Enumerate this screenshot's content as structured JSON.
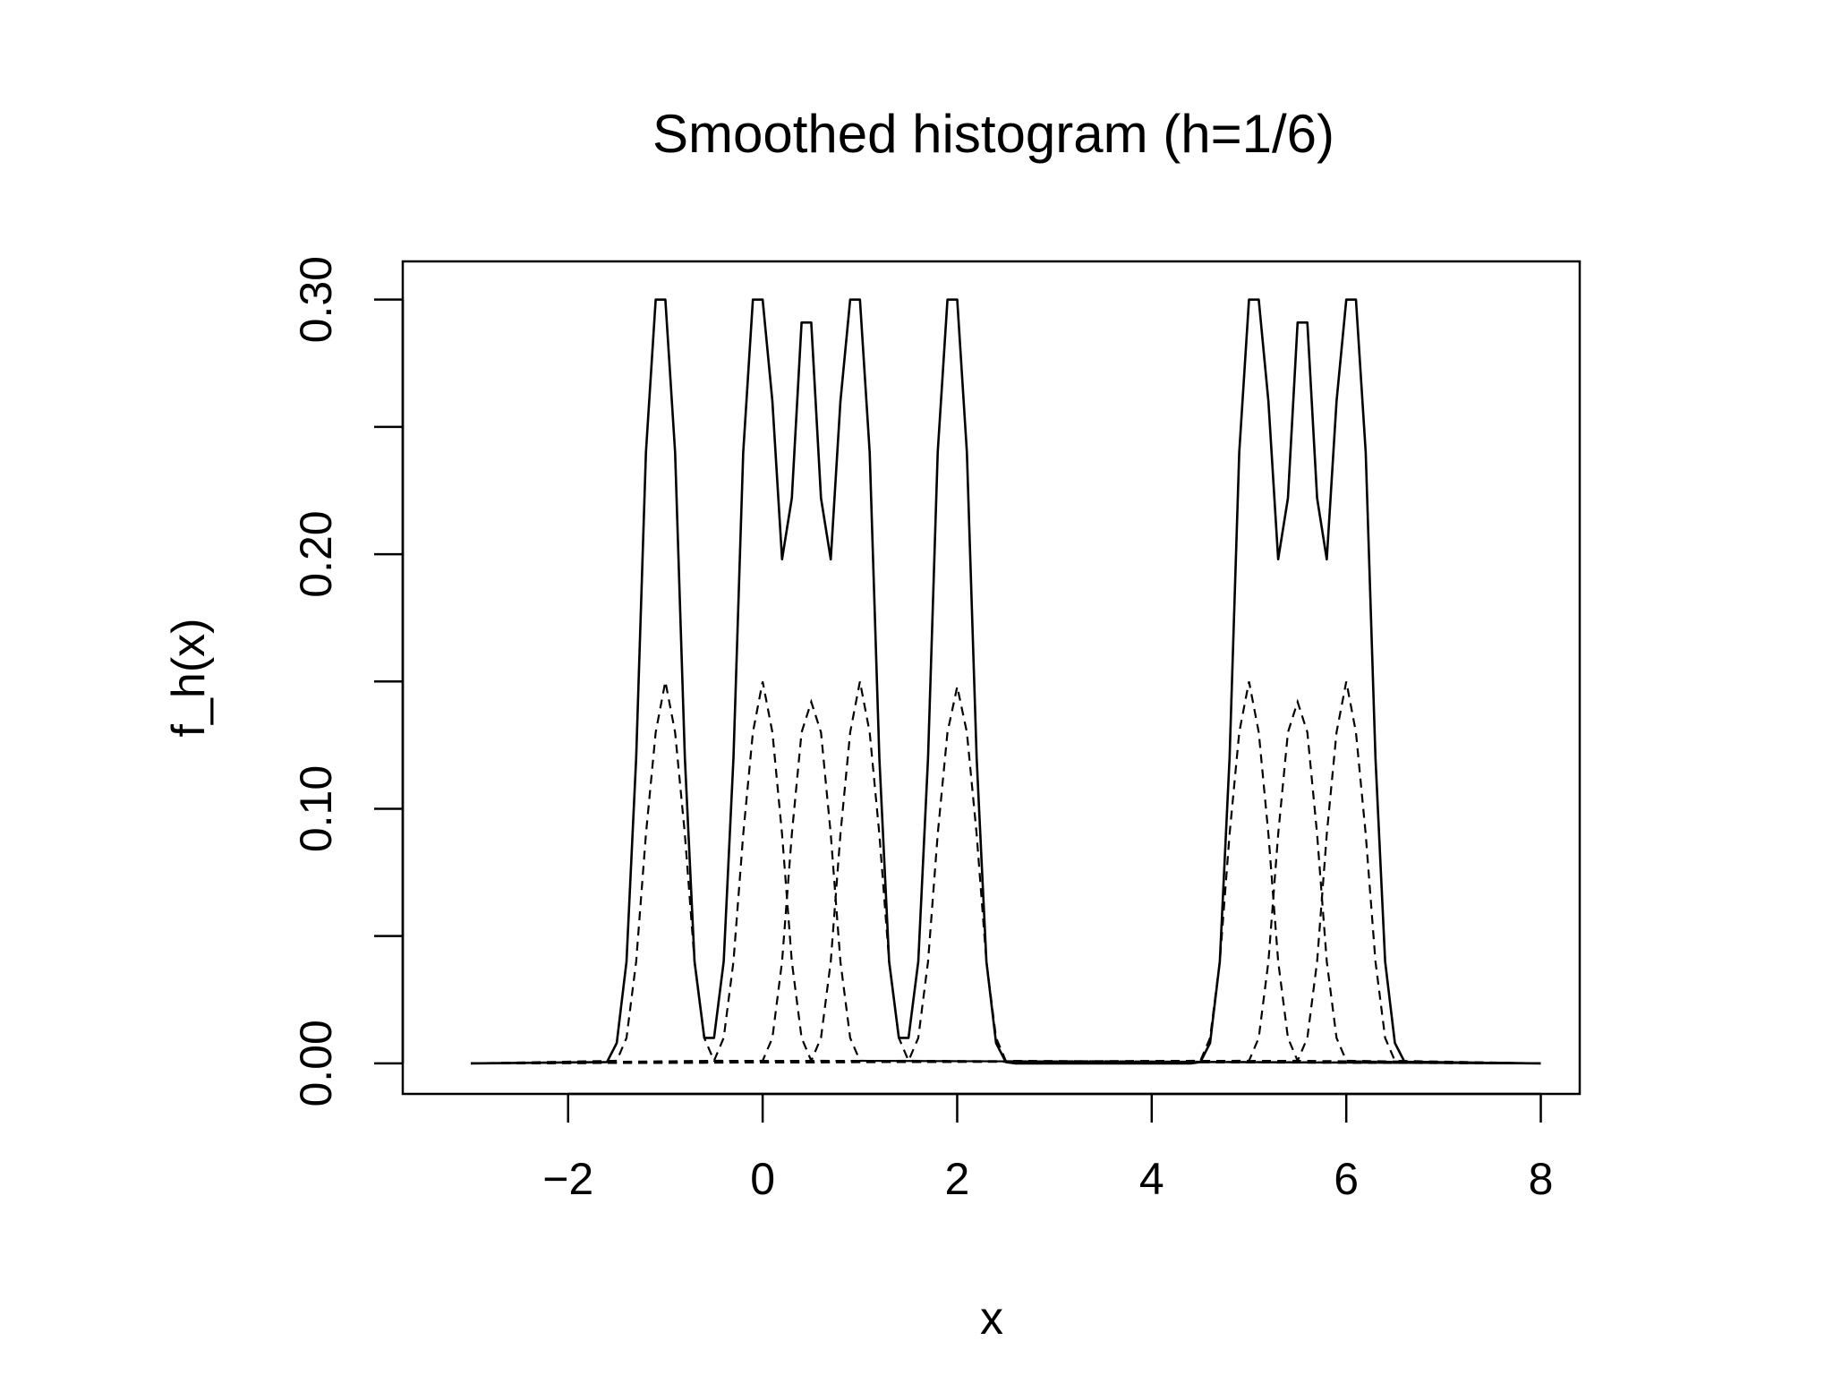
{
  "chart_data": {
    "type": "line",
    "title": "Smoothed histogram (h=1/6)",
    "xlabel": "x",
    "ylabel": "f_h(x)",
    "xlim": [
      -3.7,
      8.4
    ],
    "ylim": [
      -0.012,
      0.315
    ],
    "x_ticks": [
      -2,
      0,
      2,
      4,
      6,
      8
    ],
    "x_tick_labels": [
      "−2",
      "0",
      "2",
      "4",
      "6",
      "8"
    ],
    "y_ticks": [
      0.0,
      0.05,
      0.1,
      0.15,
      0.2,
      0.25,
      0.3
    ],
    "y_tick_labels": [
      "0.00",
      "",
      "0.10",
      "",
      "0.20",
      "",
      "0.30"
    ],
    "grid": false,
    "legend": "none",
    "bandwidth": 0.1667,
    "sample_points": [
      -1,
      0,
      0.5,
      1,
      2,
      5,
      5.5,
      6
    ],
    "x_range_plotted": [
      -3,
      8
    ],
    "series": [
      {
        "style": "solid",
        "x": [
          -3,
          -1.6,
          -1.5,
          -1.4,
          -1.3,
          -1.2,
          -1.1,
          -1.0,
          -0.9,
          -0.8,
          -0.7,
          -0.6,
          -0.5,
          -0.4,
          -0.3,
          -0.2,
          -0.1,
          0.0,
          0.1,
          0.2,
          0.3,
          0.4,
          0.5,
          0.6,
          0.7,
          0.8,
          0.9,
          1.0,
          1.1,
          1.2,
          1.3,
          1.4,
          1.5,
          1.6,
          1.7,
          1.8,
          1.9,
          2.0,
          2.1,
          2.2,
          2.3,
          2.4,
          2.5,
          2.6,
          4.4,
          4.5,
          4.6,
          4.7,
          4.8,
          4.9,
          5.0,
          5.1,
          5.2,
          5.3,
          5.4,
          5.5,
          5.6,
          5.7,
          5.8,
          5.9,
          6.0,
          6.1,
          6.2,
          6.3,
          6.4,
          6.5,
          6.6,
          8
        ],
        "values": [
          0,
          0.0005,
          0.008,
          0.04,
          0.12,
          0.24,
          0.3,
          0.3,
          0.24,
          0.12,
          0.04,
          0.01,
          0.01,
          0.04,
          0.12,
          0.24,
          0.3,
          0.3,
          0.26,
          0.198,
          0.222,
          0.291,
          0.291,
          0.222,
          0.198,
          0.26,
          0.3,
          0.3,
          0.24,
          0.12,
          0.04,
          0.01,
          0.01,
          0.04,
          0.12,
          0.24,
          0.3,
          0.3,
          0.24,
          0.12,
          0.04,
          0.008,
          0.0005,
          0,
          0,
          0.0005,
          0.008,
          0.04,
          0.12,
          0.24,
          0.3,
          0.3,
          0.26,
          0.198,
          0.222,
          0.291,
          0.291,
          0.222,
          0.198,
          0.26,
          0.3,
          0.3,
          0.24,
          0.12,
          0.04,
          0.008,
          0.0005,
          0
        ]
      },
      {
        "style": "dashed",
        "x": [
          -3,
          -1.5,
          -1.4,
          -1.3,
          -1.2,
          -1.1,
          -1.0,
          -0.9,
          -0.8,
          -0.7,
          -0.6,
          -0.5,
          8
        ],
        "values": [
          0,
          0.001,
          0.01,
          0.04,
          0.09,
          0.13,
          0.15,
          0.13,
          0.09,
          0.04,
          0.01,
          0.001,
          0
        ]
      },
      {
        "style": "dashed",
        "x": [
          -3,
          -0.5,
          -0.4,
          -0.3,
          -0.2,
          -0.1,
          0.0,
          0.1,
          0.2,
          0.3,
          0.4,
          0.5,
          8
        ],
        "values": [
          0,
          0.001,
          0.01,
          0.04,
          0.09,
          0.13,
          0.15,
          0.13,
          0.09,
          0.04,
          0.01,
          0.001,
          0
        ]
      },
      {
        "style": "dashed",
        "x": [
          -3,
          0.0,
          0.1,
          0.2,
          0.3,
          0.4,
          0.5,
          0.6,
          0.7,
          0.8,
          0.9,
          1.0,
          8
        ],
        "values": [
          0,
          0.001,
          0.01,
          0.04,
          0.09,
          0.13,
          0.142,
          0.13,
          0.09,
          0.04,
          0.01,
          0.001,
          0
        ]
      },
      {
        "style": "dashed",
        "x": [
          -3,
          0.5,
          0.6,
          0.7,
          0.8,
          0.9,
          1.0,
          1.1,
          1.2,
          1.3,
          1.4,
          1.5,
          8
        ],
        "values": [
          0,
          0.001,
          0.01,
          0.04,
          0.09,
          0.13,
          0.15,
          0.13,
          0.09,
          0.04,
          0.01,
          0.001,
          0
        ]
      },
      {
        "style": "dashed",
        "x": [
          -3,
          1.5,
          1.6,
          1.7,
          1.8,
          1.9,
          2.0,
          2.1,
          2.2,
          2.3,
          2.4,
          2.5,
          8
        ],
        "values": [
          0,
          0.001,
          0.01,
          0.04,
          0.09,
          0.13,
          0.148,
          0.13,
          0.09,
          0.04,
          0.01,
          0.001,
          0
        ]
      },
      {
        "style": "dashed",
        "x": [
          -3,
          4.5,
          4.6,
          4.7,
          4.8,
          4.9,
          5.0,
          5.1,
          5.2,
          5.3,
          5.4,
          5.5,
          8
        ],
        "values": [
          0,
          0.001,
          0.01,
          0.04,
          0.09,
          0.13,
          0.15,
          0.13,
          0.09,
          0.04,
          0.01,
          0.001,
          0
        ]
      },
      {
        "style": "dashed",
        "x": [
          -3,
          5.0,
          5.1,
          5.2,
          5.3,
          5.4,
          5.5,
          5.6,
          5.7,
          5.8,
          5.9,
          6.0,
          8
        ],
        "values": [
          0,
          0.001,
          0.01,
          0.04,
          0.09,
          0.13,
          0.142,
          0.13,
          0.09,
          0.04,
          0.01,
          0.001,
          0
        ]
      },
      {
        "style": "dashed",
        "x": [
          -3,
          5.5,
          5.6,
          5.7,
          5.8,
          5.9,
          6.0,
          6.1,
          6.2,
          6.3,
          6.4,
          6.5,
          8
        ],
        "values": [
          0,
          0.001,
          0.01,
          0.04,
          0.09,
          0.13,
          0.15,
          0.13,
          0.09,
          0.04,
          0.01,
          0.001,
          0
        ]
      }
    ]
  }
}
